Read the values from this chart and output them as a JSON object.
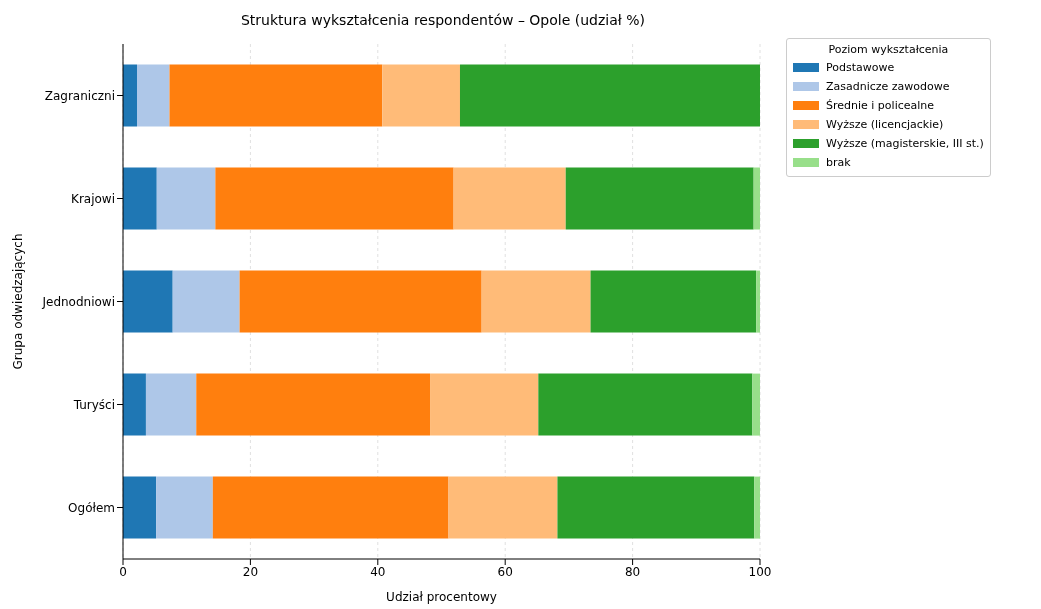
{
  "chart_data": {
    "type": "bar",
    "orientation": "horizontal",
    "stacked": true,
    "title": "Struktura wykształcenia respondentów – Opole (udział %)",
    "xlabel": "Udział procentowy",
    "ylabel": "Grupa odwiedzających",
    "legend_title": "Poziom wykształcenia",
    "categories": [
      "Zagraniczni",
      "Krajowi",
      "Jednodniowi",
      "Turyści",
      "Ogółem"
    ],
    "series": [
      {
        "name": "Podstawowe",
        "color": "#1f77b4",
        "values": [
          2.2,
          5.3,
          7.8,
          3.6,
          5.2
        ]
      },
      {
        "name": "Zasadnicze zawodowe",
        "color": "#aec7e8",
        "values": [
          5.1,
          9.2,
          10.5,
          7.9,
          8.9
        ]
      },
      {
        "name": "Średnie i policealne",
        "color": "#ff7f0e",
        "values": [
          33.4,
          37.4,
          38.0,
          36.7,
          37.0
        ]
      },
      {
        "name": "Wyższe (licencjackie)",
        "color": "#ffbb78",
        "values": [
          12.2,
          17.6,
          17.1,
          17.0,
          17.1
        ]
      },
      {
        "name": "Wyższe (magisterskie, III st.)",
        "color": "#2ca02c",
        "values": [
          47.1,
          29.5,
          26.0,
          33.6,
          30.9
        ]
      },
      {
        "name": "brak",
        "color": "#98df8a",
        "values": [
          0,
          1.0,
          0.6,
          1.2,
          0.9
        ]
      }
    ],
    "xlim": [
      0,
      100
    ],
    "xticks": [
      0,
      20,
      40,
      60,
      80,
      100
    ],
    "grid": "x",
    "legend": "top right"
  }
}
